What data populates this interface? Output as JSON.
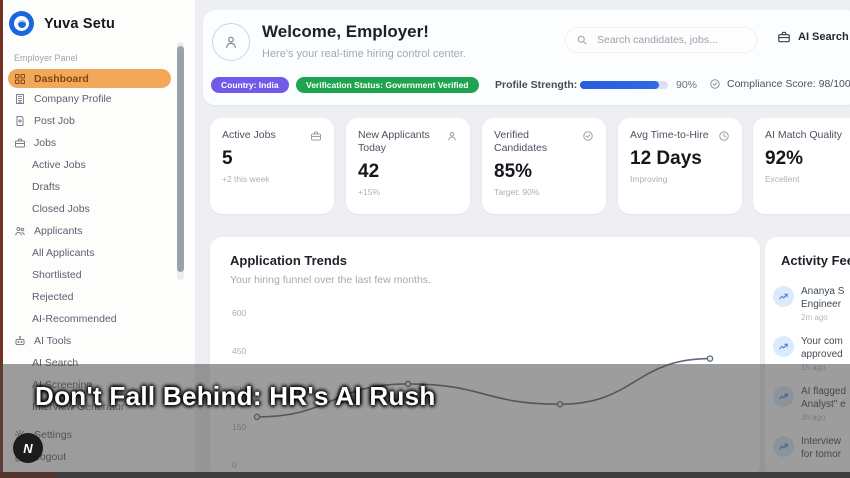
{
  "app": {
    "name": "Yuva Setu"
  },
  "sidebar": {
    "logo_label": "Yuva Setu",
    "section_label": "Employer Panel",
    "items": [
      {
        "label": "Dashboard"
      },
      {
        "label": "Company Profile"
      },
      {
        "label": "Post Job"
      },
      {
        "label": "Jobs"
      },
      {
        "label": "Active Jobs"
      },
      {
        "label": "Drafts"
      },
      {
        "label": "Closed Jobs"
      },
      {
        "label": "Applicants"
      },
      {
        "label": "All Applicants"
      },
      {
        "label": "Shortlisted"
      },
      {
        "label": "Rejected"
      },
      {
        "label": "AI-Recommended"
      },
      {
        "label": "AI Tools"
      },
      {
        "label": "AI Search"
      },
      {
        "label": "AI Screening"
      },
      {
        "label": "Interview Generator"
      },
      {
        "label": "Settings"
      },
      {
        "label": "Logout"
      }
    ]
  },
  "header": {
    "welcome_title": "Welcome, Employer!",
    "welcome_subtitle": "Here's your real-time hiring control center.",
    "search_placeholder": "Search candidates, jobs...",
    "ai_search_label": "AI Search",
    "badges": {
      "country": "Country: India",
      "verification": "Verification Status: Government Verified"
    },
    "profile_strength": {
      "label": "Profile Strength:",
      "percent_label": "90%",
      "value": 90
    },
    "compliance": "Compliance Score: 98/100"
  },
  "stats": [
    {
      "title": "Active Jobs",
      "value": "5",
      "sub": "+2 this week"
    },
    {
      "title": "New Applicants Today",
      "value": "42",
      "sub": "+15%"
    },
    {
      "title": "Verified Candidates",
      "value": "85%",
      "sub": "Target: 90%"
    },
    {
      "title": "Avg Time-to-Hire",
      "value": "12 Days",
      "sub": "Improving"
    },
    {
      "title": "AI Match Quality",
      "value": "92%",
      "sub": "Excellent"
    }
  ],
  "chart_data": {
    "type": "line",
    "title": "Application Trends",
    "subtitle": "Your hiring funnel over the last few months.",
    "x": [
      1,
      2,
      3,
      4
    ],
    "x_tick_labels_visible": false,
    "series": [
      {
        "name": "Applications",
        "values": [
          190,
          320,
          240,
          420
        ]
      }
    ],
    "ylim": [
      0,
      600
    ],
    "yticks": [
      0,
      150,
      300,
      450,
      600
    ],
    "grid": false,
    "legend": false,
    "line_color": "#5c6b7c"
  },
  "activity": {
    "title": "Activity Feed",
    "items": [
      {
        "line1": "Ananya S",
        "line2": "Engineer",
        "time": "2m ago"
      },
      {
        "line1": "Your com",
        "line2": "approved",
        "time": "1h ago"
      },
      {
        "line1": "AI flagged",
        "line2": "Analyst\" e",
        "time": "3h ago"
      },
      {
        "line1": "Interview",
        "line2": "for tomor",
        "time": ""
      }
    ]
  },
  "overlay": {
    "caption": "Don't Fall Behind: HR's AI Rush"
  },
  "watermark": {
    "letter": "N"
  },
  "colors": {
    "accent_orange": "#f2a759",
    "badge_purple": "#6f5be8",
    "badge_green": "#1ea34e",
    "progress_blue": "#2a5be0",
    "chart_line": "#5c6b7c"
  }
}
